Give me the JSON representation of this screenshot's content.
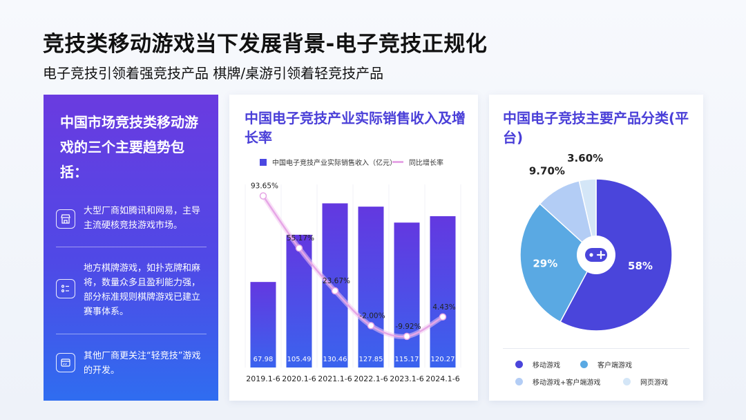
{
  "page": {
    "title": "竞技类移动游戏当下发展背景-电子竞技正规化",
    "subtitle": "电子竞技引领着强竞技产品 棋牌/桌游引领着轻竞技产品"
  },
  "left_panel": {
    "heading": "中国市场竞技类移动游戏的三个主要趋势包括：",
    "trends": [
      {
        "icon": "store-icon",
        "text": "大型厂商如腾讯和网易，主导主流硬核竞技游戏市场。"
      },
      {
        "icon": "list-icon",
        "text": "地方棋牌游戏，如扑克牌和麻将，数量众多且盈利能力强，部分标准规则棋牌游戏已建立赛事体系。"
      },
      {
        "icon": "web-icon",
        "text": "其他厂商更关注“轻竞技”游戏的开发。"
      }
    ]
  },
  "colors": {
    "bar_top": "#6338e0",
    "bar_bottom": "#3a63ee",
    "line": "#e6a6e6",
    "pie_mobile": "#4a45db",
    "pie_client": "#5aa9e3",
    "pie_both": "#b3cdf5",
    "pie_web": "#d4e6f7"
  },
  "chart_data": [
    {
      "type": "bar",
      "title": "中国电子竞技产业实际销售收入及增长率",
      "categories": [
        "2019.1-6",
        "2020.1-6",
        "2021.1-6",
        "2022.1-6",
        "2023.1-6",
        "2024.1-6"
      ],
      "series": [
        {
          "name": "中国电子竞技产业实际销售收入（亿元）",
          "type": "bar",
          "values": [
            67.98,
            105.49,
            130.46,
            127.85,
            115.17,
            120.27
          ],
          "labels": [
            "67.98",
            "105.49",
            "130.46",
            "127.85",
            "115.17",
            "120.27"
          ]
        },
        {
          "name": "同比增长率",
          "type": "line",
          "values": [
            93.65,
            55.17,
            23.67,
            -2.0,
            -9.92,
            4.43
          ],
          "labels": [
            "93.65%",
            "55.17%",
            "23.67%",
            "-2.00%",
            "-9.92%",
            "4.43%"
          ]
        }
      ],
      "legend": "top",
      "grid": false
    },
    {
      "type": "pie",
      "title": "中国电子竞技主要产品分类(平台)",
      "labels": [
        "移动游戏",
        "客户端游戏",
        "移动游戏+客户端游戏",
        "网页游戏"
      ],
      "values": [
        58,
        29,
        9.7,
        3.6
      ],
      "value_labels": [
        "58%",
        "29%",
        "9.70%",
        "3.60%"
      ],
      "center_icon": "gamepad-icon",
      "legend": "bottom"
    }
  ]
}
